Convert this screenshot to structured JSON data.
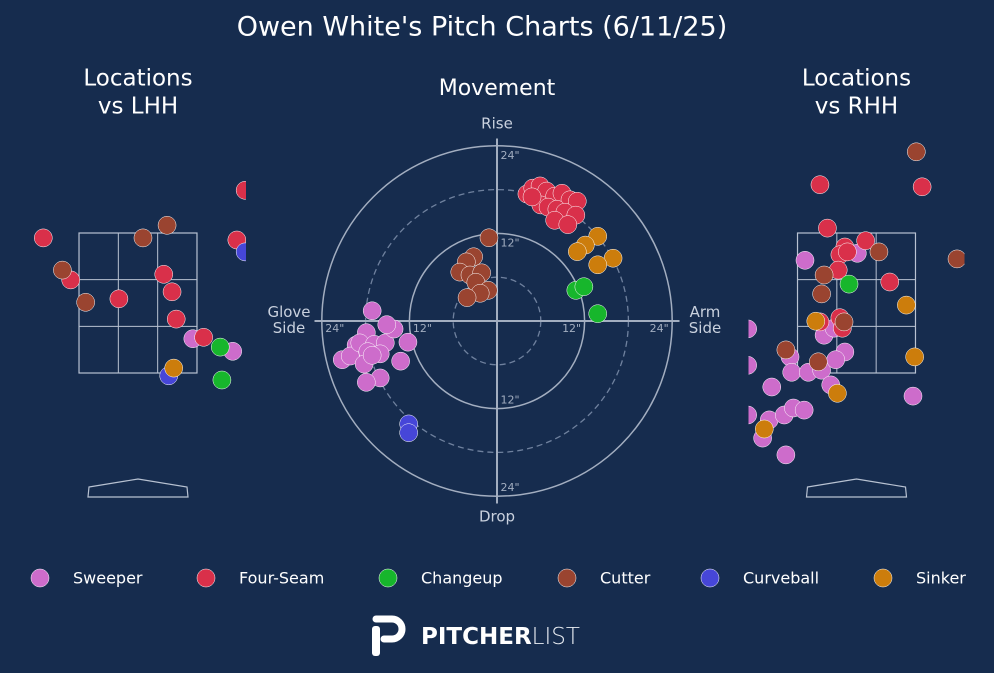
{
  "title": "Owen White's Pitch Charts (6/11/25)",
  "legend": [
    {
      "name": "Sweeper",
      "color": "#cd6ccb"
    },
    {
      "name": "Four-Seam",
      "color": "#d9304a"
    },
    {
      "name": "Changeup",
      "color": "#17b62c"
    },
    {
      "name": "Cutter",
      "color": "#9a4430"
    },
    {
      "name": "Curveball",
      "color": "#4646d8"
    },
    {
      "name": "Sinker",
      "color": "#cc7d0c"
    }
  ],
  "logo": [
    "PITCHER",
    "LIST"
  ],
  "chart_data": [
    {
      "type": "location",
      "title": [
        "Locations",
        "vs LHH"
      ],
      "xlim": [
        -1.3,
        1.3
      ],
      "ylim": [
        -0.3,
        4.8
      ],
      "strike_zone": {
        "x": [
          -0.71,
          0.71
        ],
        "z": [
          1.5,
          3.5
        ]
      },
      "series": [
        {
          "x": [
            0.66,
            1.14
          ],
          "values": [
            1.99,
            1.81
          ]
        },
        {
          "x": [
            1.29,
            -1.14,
            -0.81,
            -0.23,
            0.31,
            0.41,
            0.46,
            0.79,
            1.19
          ],
          "values": [
            4.11,
            3.43,
            2.83,
            2.56,
            2.91,
            2.66,
            2.27,
            2.01,
            3.4
          ]
        },
        {
          "x": [
            0.99,
            1.01
          ],
          "values": [
            1.87,
            1.4
          ]
        },
        {
          "x": [
            -0.91,
            -0.63,
            0.06,
            0.35
          ],
          "values": [
            2.97,
            2.51,
            3.43,
            3.61
          ]
        },
        {
          "x": [
            0.37,
            1.29
          ],
          "values": [
            1.46,
            3.23
          ]
        },
        {
          "x": [
            0.43
          ],
          "values": [
            1.57
          ]
        }
      ]
    },
    {
      "type": "movement",
      "title": "Movement",
      "axis_labels": {
        "top": "Rise",
        "bottom": "Drop",
        "left": "Glove Side",
        "right": "Arm Side"
      },
      "xlim": [
        -25,
        25
      ],
      "ylim": [
        -25,
        25
      ],
      "xticks": [
        {
          "value": -24,
          "label": "24\""
        },
        {
          "value": -12,
          "label": "12\""
        },
        {
          "value": 12,
          "label": "12\""
        },
        {
          "value": 24,
          "label": "24\""
        }
      ],
      "yticks": [
        {
          "value": -24,
          "label": "24\""
        },
        {
          "value": -12,
          "label": "12\""
        },
        {
          "value": 12,
          "label": "12\""
        },
        {
          "value": 24,
          "label": "24\""
        }
      ],
      "minor_rings": [
        6,
        18
      ],
      "series": [
        {
          "x": [
            -17.1,
            -17.9,
            -19.3,
            -21.2,
            -20.1,
            -18.8,
            -16.8,
            -15.3,
            -14.1,
            -12.2,
            -17.7,
            -16.0,
            -15.1,
            -13.2,
            -16.0,
            -17.9,
            -18.2,
            -17.1
          ],
          "values": [
            1.4,
            -1.6,
            -3.3,
            -5.3,
            -4.8,
            -3.0,
            -3.2,
            -3.0,
            -1.1,
            -2.9,
            -4.2,
            -4.5,
            -0.5,
            -5.5,
            -7.8,
            -8.4,
            -5.9,
            -4.7
          ]
        },
        {
          "x": [
            4.1,
            4.9,
            5.9,
            6.8,
            7.9,
            8.9,
            10.0,
            11.0,
            6.0,
            7.0,
            8.2,
            9.3,
            10.8,
            7.9,
            9.7,
            4.8
          ],
          "values": [
            17.4,
            18.2,
            18.5,
            17.8,
            17.1,
            17.5,
            16.6,
            16.4,
            15.9,
            15.6,
            15.3,
            14.9,
            14.5,
            13.8,
            13.2,
            17.0
          ]
        },
        {
          "x": [
            10.8,
            11.9,
            13.8
          ],
          "values": [
            4.2,
            4.7,
            1.0
          ]
        },
        {
          "x": [
            -1.1,
            -3.2,
            -4.2,
            -5.1,
            -3.7,
            -2.1,
            -2.9,
            -1.2,
            -2.3,
            -4.1
          ],
          "values": [
            11.4,
            8.8,
            8.1,
            6.7,
            6.3,
            6.6,
            5.3,
            4.2,
            3.8,
            3.2
          ]
        },
        {
          "x": [
            -12.1,
            -12.1
          ],
          "values": [
            -14.1,
            -15.3
          ]
        },
        {
          "x": [
            13.8,
            12.1,
            11.0,
            15.9,
            13.8
          ],
          "values": [
            11.6,
            10.4,
            9.5,
            8.6,
            7.7
          ]
        }
      ]
    },
    {
      "type": "location",
      "title": [
        "Locations",
        "vs RHH"
      ],
      "xlim": [
        -1.3,
        1.3
      ],
      "ylim": [
        -0.3,
        4.8
      ],
      "strike_zone": {
        "x": [
          -0.71,
          0.71
        ],
        "z": [
          1.5,
          3.5
        ]
      },
      "series": [
        {
          "x": [
            -0.62,
            0.01,
            -1.31,
            -1.31,
            -0.8,
            -0.78,
            -0.58,
            -0.42,
            -0.39,
            -0.22,
            -0.14,
            -0.25,
            -0.31,
            -1.02,
            -1.31,
            -1.05,
            -0.87,
            -0.76,
            -0.63,
            -1.13,
            -0.85,
            0.68,
            -0.27
          ],
          "values": [
            3.11,
            3.21,
            2.13,
            1.61,
            1.73,
            1.51,
            1.51,
            1.54,
            2.04,
            2.19,
            1.8,
            1.69,
            1.33,
            1.3,
            0.9,
            0.83,
            0.9,
            1.0,
            0.97,
            0.57,
            0.33,
            1.17,
            2.14
          ]
        },
        {
          "x": [
            -0.44,
            0.79,
            -0.35,
            -0.14,
            0.11,
            0.4,
            -0.2,
            -0.11,
            -0.22,
            -0.44,
            -0.2,
            -0.17
          ],
          "values": [
            4.19,
            4.16,
            3.57,
            3.3,
            3.39,
            2.8,
            3.19,
            3.23,
            2.97,
            2.23,
            2.29,
            2.14
          ]
        },
        {
          "x": [
            -0.09
          ],
          "values": [
            2.77
          ]
        },
        {
          "x": [
            0.72,
            0.27,
            -0.39,
            -0.42,
            -0.85,
            -0.15,
            1.21,
            -0.46
          ],
          "values": [
            4.66,
            3.23,
            2.9,
            2.63,
            1.83,
            2.23,
            3.13,
            1.66
          ]
        },
        {
          "x": [],
          "values": []
        },
        {
          "x": [
            0.6,
            0.7,
            -0.49,
            -0.23,
            -1.11
          ],
          "values": [
            2.47,
            1.73,
            2.24,
            1.21,
            0.7
          ]
        }
      ]
    }
  ]
}
